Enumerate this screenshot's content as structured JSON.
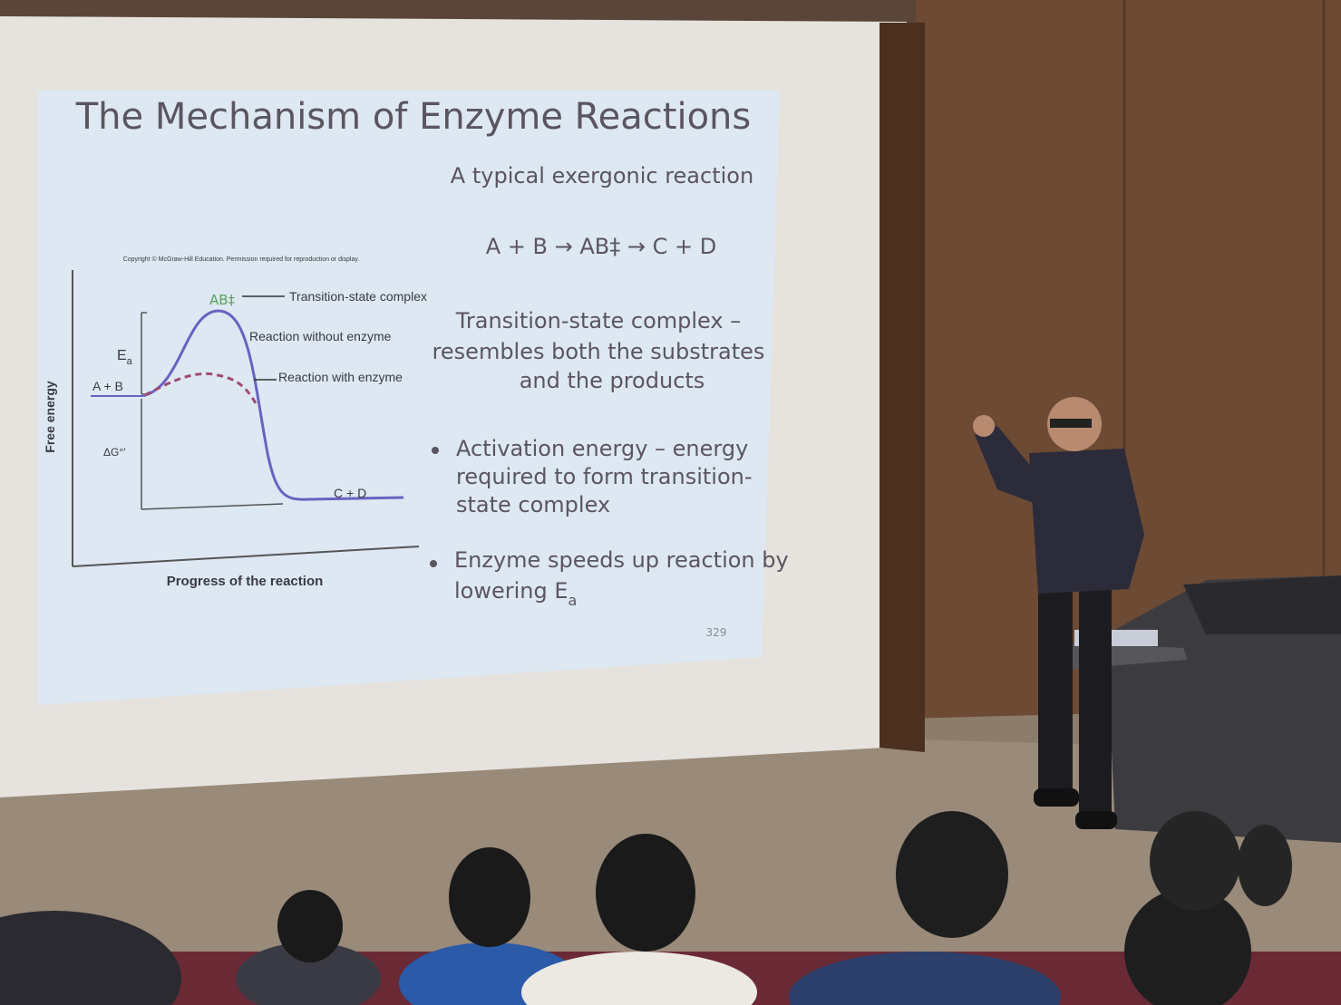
{
  "slide": {
    "title": "The Mechanism of Enzyme Reactions",
    "subtitle": "A typical exergonic reaction",
    "equation": "A + B → AB‡ → C + D",
    "definition": [
      "Transition-state complex –",
      "resembles both the substrates",
      "and the products"
    ],
    "bullets": [
      {
        "lines": [
          "Activation energy – energy",
          "required to form transition-",
          "state complex"
        ]
      },
      {
        "lines": [
          "Enzyme speeds up reaction by",
          "lowering E"
        ],
        "subscript": "a"
      }
    ],
    "page_number": 329,
    "figure": {
      "copyright": "Copyright © McGraw-Hill Education. Permission required for reproduction or display.",
      "y_axis_label": "Free energy",
      "x_axis_label": "Progress of the reaction",
      "transition_symbol": "AB‡",
      "transition_label": "Transition-state complex",
      "without_enzyme_label": "Reaction without enzyme",
      "with_enzyme_label": "Reaction with enzyme",
      "reactants": "A + B",
      "products": "C + D",
      "activation_symbol": "E",
      "activation_subscript": "a",
      "delta_g": "ΔG°′"
    }
  }
}
